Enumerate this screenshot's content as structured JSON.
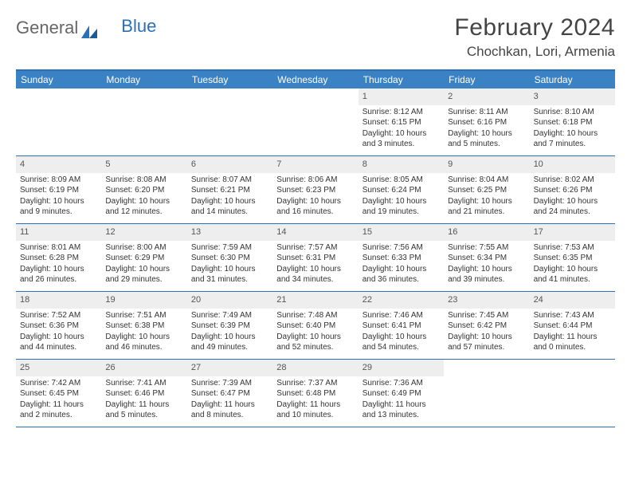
{
  "logo": {
    "text1": "General",
    "text2": "Blue"
  },
  "title": "February 2024",
  "location": "Chochkan, Lori, Armenia",
  "colors": {
    "header_bg": "#3a82c4",
    "border": "#2a70b8",
    "daynum_bg": "#eeeeee",
    "text": "#333333"
  },
  "day_names": [
    "Sunday",
    "Monday",
    "Tuesday",
    "Wednesday",
    "Thursday",
    "Friday",
    "Saturday"
  ],
  "weeks": [
    [
      null,
      null,
      null,
      null,
      {
        "n": "1",
        "sr": "8:12 AM",
        "ss": "6:15 PM",
        "dl": "10 hours and 3 minutes."
      },
      {
        "n": "2",
        "sr": "8:11 AM",
        "ss": "6:16 PM",
        "dl": "10 hours and 5 minutes."
      },
      {
        "n": "3",
        "sr": "8:10 AM",
        "ss": "6:18 PM",
        "dl": "10 hours and 7 minutes."
      }
    ],
    [
      {
        "n": "4",
        "sr": "8:09 AM",
        "ss": "6:19 PM",
        "dl": "10 hours and 9 minutes."
      },
      {
        "n": "5",
        "sr": "8:08 AM",
        "ss": "6:20 PM",
        "dl": "10 hours and 12 minutes."
      },
      {
        "n": "6",
        "sr": "8:07 AM",
        "ss": "6:21 PM",
        "dl": "10 hours and 14 minutes."
      },
      {
        "n": "7",
        "sr": "8:06 AM",
        "ss": "6:23 PM",
        "dl": "10 hours and 16 minutes."
      },
      {
        "n": "8",
        "sr": "8:05 AM",
        "ss": "6:24 PM",
        "dl": "10 hours and 19 minutes."
      },
      {
        "n": "9",
        "sr": "8:04 AM",
        "ss": "6:25 PM",
        "dl": "10 hours and 21 minutes."
      },
      {
        "n": "10",
        "sr": "8:02 AM",
        "ss": "6:26 PM",
        "dl": "10 hours and 24 minutes."
      }
    ],
    [
      {
        "n": "11",
        "sr": "8:01 AM",
        "ss": "6:28 PM",
        "dl": "10 hours and 26 minutes."
      },
      {
        "n": "12",
        "sr": "8:00 AM",
        "ss": "6:29 PM",
        "dl": "10 hours and 29 minutes."
      },
      {
        "n": "13",
        "sr": "7:59 AM",
        "ss": "6:30 PM",
        "dl": "10 hours and 31 minutes."
      },
      {
        "n": "14",
        "sr": "7:57 AM",
        "ss": "6:31 PM",
        "dl": "10 hours and 34 minutes."
      },
      {
        "n": "15",
        "sr": "7:56 AM",
        "ss": "6:33 PM",
        "dl": "10 hours and 36 minutes."
      },
      {
        "n": "16",
        "sr": "7:55 AM",
        "ss": "6:34 PM",
        "dl": "10 hours and 39 minutes."
      },
      {
        "n": "17",
        "sr": "7:53 AM",
        "ss": "6:35 PM",
        "dl": "10 hours and 41 minutes."
      }
    ],
    [
      {
        "n": "18",
        "sr": "7:52 AM",
        "ss": "6:36 PM",
        "dl": "10 hours and 44 minutes."
      },
      {
        "n": "19",
        "sr": "7:51 AM",
        "ss": "6:38 PM",
        "dl": "10 hours and 46 minutes."
      },
      {
        "n": "20",
        "sr": "7:49 AM",
        "ss": "6:39 PM",
        "dl": "10 hours and 49 minutes."
      },
      {
        "n": "21",
        "sr": "7:48 AM",
        "ss": "6:40 PM",
        "dl": "10 hours and 52 minutes."
      },
      {
        "n": "22",
        "sr": "7:46 AM",
        "ss": "6:41 PM",
        "dl": "10 hours and 54 minutes."
      },
      {
        "n": "23",
        "sr": "7:45 AM",
        "ss": "6:42 PM",
        "dl": "10 hours and 57 minutes."
      },
      {
        "n": "24",
        "sr": "7:43 AM",
        "ss": "6:44 PM",
        "dl": "11 hours and 0 minutes."
      }
    ],
    [
      {
        "n": "25",
        "sr": "7:42 AM",
        "ss": "6:45 PM",
        "dl": "11 hours and 2 minutes."
      },
      {
        "n": "26",
        "sr": "7:41 AM",
        "ss": "6:46 PM",
        "dl": "11 hours and 5 minutes."
      },
      {
        "n": "27",
        "sr": "7:39 AM",
        "ss": "6:47 PM",
        "dl": "11 hours and 8 minutes."
      },
      {
        "n": "28",
        "sr": "7:37 AM",
        "ss": "6:48 PM",
        "dl": "11 hours and 10 minutes."
      },
      {
        "n": "29",
        "sr": "7:36 AM",
        "ss": "6:49 PM",
        "dl": "11 hours and 13 minutes."
      },
      null,
      null
    ]
  ],
  "labels": {
    "sunrise": "Sunrise: ",
    "sunset": "Sunset: ",
    "daylight": "Daylight: "
  }
}
